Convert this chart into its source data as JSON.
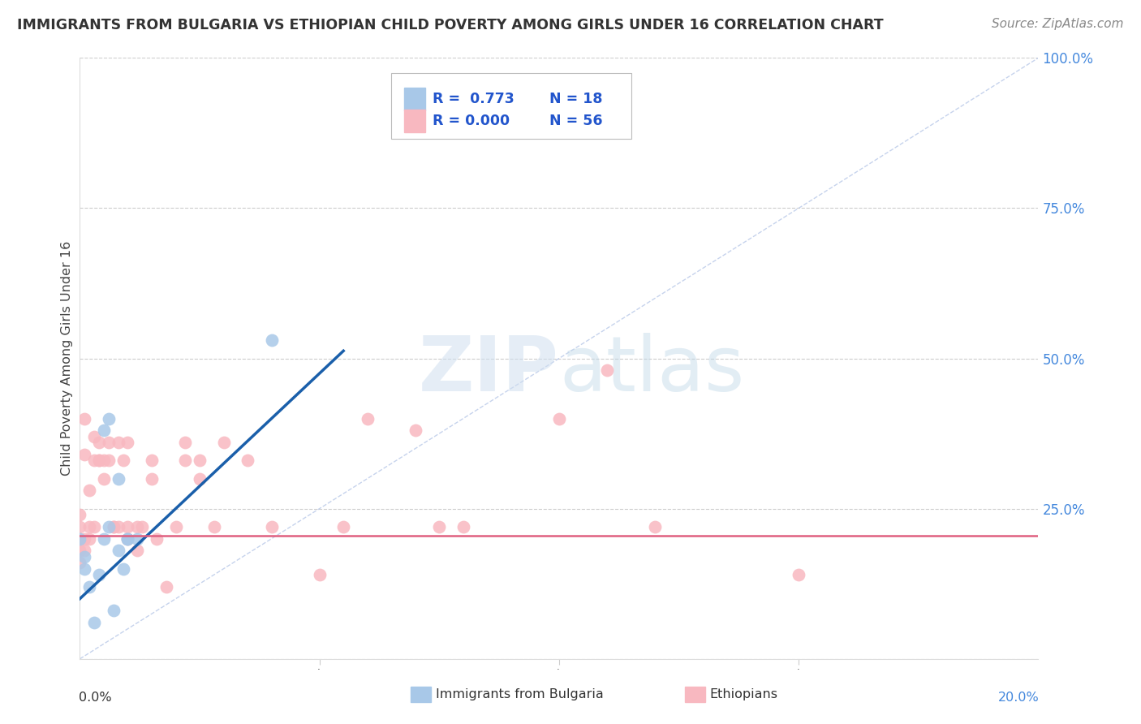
{
  "title": "IMMIGRANTS FROM BULGARIA VS ETHIOPIAN CHILD POVERTY AMONG GIRLS UNDER 16 CORRELATION CHART",
  "source": "Source: ZipAtlas.com",
  "ylabel": "Child Poverty Among Girls Under 16",
  "xlim": [
    0.0,
    0.2
  ],
  "ylim": [
    0.0,
    1.0
  ],
  "yticks": [
    0.0,
    0.25,
    0.5,
    0.75,
    1.0
  ],
  "ytick_labels": [
    "",
    "25.0%",
    "50.0%",
    "75.0%",
    "100.0%"
  ],
  "legend_r1": "R =  0.773",
  "legend_n1": "N = 18",
  "legend_r2": "R = 0.000",
  "legend_n2": "N = 56",
  "bg_color": "#ffffff",
  "grid_color": "#cccccc",
  "blue_dot_color": "#a8c8e8",
  "pink_dot_color": "#f8b8c0",
  "blue_line_color": "#1a5faa",
  "pink_line_color": "#e06080",
  "diag_color": "#b8c8e8",
  "ylabel_color": "#444444",
  "title_color": "#333333",
  "source_color": "#888888",
  "tick_label_color": "#4488dd",
  "legend_text_color": "#222222",
  "legend_val_color": "#2255cc",
  "bulgaria_points": [
    [
      0.0,
      0.2
    ],
    [
      0.001,
      0.17
    ],
    [
      0.001,
      0.15
    ],
    [
      0.002,
      0.12
    ],
    [
      0.003,
      0.06
    ],
    [
      0.004,
      0.14
    ],
    [
      0.005,
      0.2
    ],
    [
      0.005,
      0.38
    ],
    [
      0.006,
      0.4
    ],
    [
      0.006,
      0.22
    ],
    [
      0.007,
      0.08
    ],
    [
      0.008,
      0.3
    ],
    [
      0.008,
      0.18
    ],
    [
      0.009,
      0.15
    ],
    [
      0.01,
      0.2
    ],
    [
      0.01,
      0.2
    ],
    [
      0.012,
      0.2
    ],
    [
      0.04,
      0.53
    ]
  ],
  "ethiopia_points": [
    [
      0.0,
      0.22
    ],
    [
      0.0,
      0.2
    ],
    [
      0.0,
      0.18
    ],
    [
      0.0,
      0.16
    ],
    [
      0.0,
      0.24
    ],
    [
      0.001,
      0.2
    ],
    [
      0.001,
      0.18
    ],
    [
      0.001,
      0.34
    ],
    [
      0.001,
      0.4
    ],
    [
      0.002,
      0.2
    ],
    [
      0.002,
      0.22
    ],
    [
      0.002,
      0.28
    ],
    [
      0.003,
      0.33
    ],
    [
      0.003,
      0.37
    ],
    [
      0.003,
      0.22
    ],
    [
      0.004,
      0.33
    ],
    [
      0.004,
      0.36
    ],
    [
      0.004,
      0.33
    ],
    [
      0.005,
      0.3
    ],
    [
      0.005,
      0.33
    ],
    [
      0.006,
      0.33
    ],
    [
      0.006,
      0.36
    ],
    [
      0.007,
      0.22
    ],
    [
      0.007,
      0.22
    ],
    [
      0.008,
      0.22
    ],
    [
      0.008,
      0.36
    ],
    [
      0.009,
      0.33
    ],
    [
      0.01,
      0.36
    ],
    [
      0.01,
      0.22
    ],
    [
      0.01,
      0.2
    ],
    [
      0.012,
      0.18
    ],
    [
      0.012,
      0.22
    ],
    [
      0.013,
      0.22
    ],
    [
      0.015,
      0.3
    ],
    [
      0.015,
      0.33
    ],
    [
      0.016,
      0.2
    ],
    [
      0.018,
      0.12
    ],
    [
      0.02,
      0.22
    ],
    [
      0.022,
      0.33
    ],
    [
      0.022,
      0.36
    ],
    [
      0.025,
      0.33
    ],
    [
      0.025,
      0.3
    ],
    [
      0.028,
      0.22
    ],
    [
      0.03,
      0.36
    ],
    [
      0.035,
      0.33
    ],
    [
      0.04,
      0.22
    ],
    [
      0.05,
      0.14
    ],
    [
      0.055,
      0.22
    ],
    [
      0.06,
      0.4
    ],
    [
      0.07,
      0.38
    ],
    [
      0.075,
      0.22
    ],
    [
      0.08,
      0.22
    ],
    [
      0.1,
      0.4
    ],
    [
      0.11,
      0.48
    ],
    [
      0.12,
      0.22
    ],
    [
      0.15,
      0.14
    ]
  ],
  "bul_line_x": [
    0.0,
    0.055
  ],
  "bul_line_slope": 7.5,
  "bul_line_intercept": 0.1,
  "eth_line_y": 0.205
}
